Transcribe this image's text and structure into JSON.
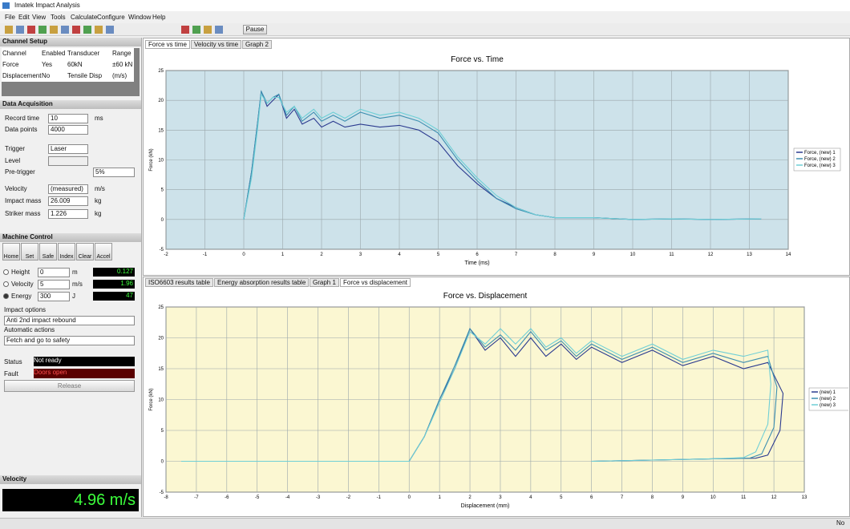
{
  "window": {
    "title": "Imatek Impact Analysis",
    "menu": [
      "File",
      "Edit",
      "View",
      "Tools",
      "Calculate",
      "Configure",
      "Window",
      "Help"
    ],
    "pause": "Pause",
    "status": "No"
  },
  "channel_setup": {
    "title": "Channel Setup",
    "header": [
      "Channel",
      "Enabled",
      "Transducer",
      "Range"
    ],
    "rows": [
      [
        "Force",
        "Yes",
        "60kN",
        "±60 kN"
      ],
      [
        "Displacement",
        "No",
        "Tensile Disp",
        "(m/s)"
      ]
    ]
  },
  "data_acquisition": {
    "title": "Data Acquisition",
    "record_time": {
      "label": "Record time",
      "value": "10",
      "unit": "ms"
    },
    "data_points": {
      "label": "Data points",
      "value": "4000"
    },
    "trigger": {
      "label": "Trigger",
      "value": "Laser"
    },
    "level": {
      "label": "Level"
    },
    "pre_trigger": {
      "label": "Pre-trigger",
      "value": "5%"
    },
    "velocity": {
      "label": "Velocity",
      "value": "(measured)",
      "unit": "m/s"
    },
    "impact_mass": {
      "label": "Impact mass",
      "value": "26.009",
      "unit": "kg"
    },
    "striker_mass": {
      "label": "Striker mass",
      "value": "1.226",
      "unit": "kg"
    }
  },
  "machine_control": {
    "title": "Machine Control",
    "buttons": [
      "Home",
      "Set",
      "Safe",
      "Index",
      "Clear",
      "Accel"
    ],
    "rows": [
      {
        "label": "Height",
        "value": "0",
        "unit": "m",
        "reading": "0.127"
      },
      {
        "label": "Velocity",
        "value": "5",
        "unit": "m/s",
        "reading": "1.96"
      },
      {
        "label": "Energy",
        "value": "300",
        "unit": "J",
        "reading": "47"
      }
    ],
    "impact_options": {
      "label": "Impact options",
      "value": "Anti 2nd impact rebound"
    },
    "automatic_actions": {
      "label": "Automatic actions",
      "value": "Fetch and go to safety"
    },
    "status": {
      "label": "Status",
      "value": "Not ready"
    },
    "fault": {
      "label": "Fault",
      "value": "Doors open"
    },
    "release": "Release"
  },
  "velocity_panel": {
    "title": "Velocity",
    "reading": "4.96 m/s"
  },
  "tabs_top": [
    "Force vs time",
    "Velocity vs time",
    "Graph 2"
  ],
  "tabs_bottom": [
    "ISO6603 results table",
    "Energy absorption results table",
    "Graph 1",
    "Force vs displacement"
  ],
  "chart_data": [
    {
      "type": "line",
      "title": "Force vs. Time",
      "x_label": "Time (ms)",
      "y_label": "Force (kN)",
      "xlim": [
        -2,
        14
      ],
      "xticks": [
        -2,
        -1,
        0,
        1,
        2,
        3,
        4,
        5,
        6,
        7,
        8,
        9,
        10,
        11,
        12,
        13,
        14
      ],
      "ylim": [
        -5,
        25
      ],
      "yticks": [
        -5,
        0,
        5,
        10,
        15,
        20,
        25
      ],
      "grid": true,
      "background": "#cde2ea",
      "series": [
        {
          "name": "Force, (new) 1",
          "color": "#2b3a8f",
          "x": [
            0,
            0.2,
            0.35,
            0.45,
            0.6,
            0.75,
            0.9,
            1.1,
            1.3,
            1.5,
            1.8,
            2,
            2.3,
            2.6,
            3,
            3.5,
            4,
            4.5,
            5,
            5.5,
            6,
            6.5,
            7,
            7.5,
            8,
            9,
            10,
            11,
            12,
            13.3
          ],
          "values": [
            0,
            8,
            16,
            21.5,
            19,
            20,
            21,
            17,
            18.5,
            16,
            17,
            15.5,
            16.5,
            15.5,
            16,
            15.5,
            15.8,
            15,
            13,
            9,
            6,
            3.5,
            2,
            0.8,
            0.3,
            0.3,
            0,
            0.1,
            0,
            0.1
          ]
        },
        {
          "name": "Force, (new) 2",
          "color": "#3d8fb0",
          "x": [
            0,
            0.2,
            0.35,
            0.45,
            0.6,
            0.75,
            0.9,
            1.1,
            1.3,
            1.5,
            1.8,
            2,
            2.3,
            2.6,
            3,
            3.5,
            4,
            4.5,
            5,
            5.5,
            6,
            6.5,
            7,
            7.5,
            8,
            9,
            10,
            11,
            12,
            13.3
          ],
          "values": [
            0,
            8,
            16,
            21.5,
            19.5,
            20.5,
            21,
            17.5,
            19,
            16.5,
            18,
            16.5,
            17.5,
            16.5,
            18,
            17,
            17.5,
            16.5,
            14.5,
            10,
            6.5,
            3.5,
            1.8,
            0.8,
            0.3,
            0.3,
            0,
            0.1,
            0,
            0.1
          ]
        },
        {
          "name": "Force, (new) 3",
          "color": "#6fcfd6",
          "x": [
            0,
            0.2,
            0.35,
            0.45,
            0.6,
            0.75,
            0.9,
            1.1,
            1.3,
            1.5,
            1.8,
            2,
            2.3,
            2.6,
            3,
            3.5,
            4,
            4.5,
            5,
            5.5,
            6,
            6.5,
            7,
            7.5,
            8,
            9,
            10,
            11,
            12,
            13.3
          ],
          "values": [
            0,
            7,
            15,
            21,
            19.5,
            20.5,
            20.5,
            18,
            19,
            17,
            18.5,
            17,
            18,
            17,
            18.5,
            17.5,
            18,
            17,
            15,
            10.5,
            7,
            4,
            2,
            0.8,
            0.3,
            0.3,
            0,
            0.1,
            0,
            0.1
          ]
        }
      ]
    },
    {
      "type": "line",
      "title": "Force vs. Displacement",
      "x_label": "Displacement (mm)",
      "y_label": "Force (kN)",
      "xlim": [
        -8,
        13
      ],
      "xticks": [
        -8,
        -7,
        -6,
        -5,
        -4,
        -3,
        -2,
        -1,
        0,
        1,
        2,
        3,
        4,
        5,
        6,
        7,
        8,
        9,
        10,
        11,
        12,
        13
      ],
      "ylim": [
        -5,
        25
      ],
      "yticks": [
        -5,
        0,
        5,
        10,
        15,
        20,
        25
      ],
      "grid": true,
      "background": "#fbf7d2",
      "series": [
        {
          "name": "(new) 1",
          "color": "#2b3a8f",
          "x": [
            -7.5,
            -4,
            -1,
            0,
            0.5,
            1,
            1.5,
            2,
            2.5,
            3,
            3.5,
            4,
            4.5,
            5,
            5.5,
            6,
            7,
            8,
            9,
            10,
            11,
            11.8,
            12.3,
            12.2,
            11.8,
            11.4,
            10,
            8,
            6
          ],
          "values": [
            0,
            0,
            0,
            0,
            4,
            10,
            15,
            21.5,
            18,
            20,
            17,
            20,
            17,
            19,
            16.5,
            18.5,
            16,
            18,
            15.5,
            17,
            15,
            16,
            11,
            5,
            1,
            0.5,
            0.4,
            0.2,
            0
          ]
        },
        {
          "name": "(new) 2",
          "color": "#3d8fb0",
          "x": [
            -7.5,
            -4,
            -1,
            0,
            0.5,
            1,
            1.5,
            2,
            2.5,
            3,
            3.5,
            4,
            4.5,
            5,
            5.5,
            6,
            7,
            8,
            9,
            10,
            11,
            11.8,
            12.1,
            12,
            11.6,
            11.2,
            10,
            8,
            6
          ],
          "values": [
            0,
            0,
            0,
            0,
            4,
            10,
            15.5,
            21.5,
            18.5,
            20.5,
            18,
            21,
            18,
            19.5,
            17,
            19,
            16.5,
            18.5,
            16,
            17.5,
            16,
            17,
            12,
            5.5,
            1.2,
            0.5,
            0.4,
            0.2,
            0
          ]
        },
        {
          "name": "(new) 3",
          "color": "#6fcfd6",
          "x": [
            -7.5,
            -4,
            -1,
            0,
            0.5,
            1,
            1.5,
            2,
            2.5,
            3,
            3.5,
            4,
            4.5,
            5,
            5.5,
            6,
            7,
            8,
            9,
            10,
            11,
            11.8,
            11.9,
            11.8,
            11.4,
            11,
            10,
            8,
            6
          ],
          "values": [
            0,
            0,
            0,
            0,
            4,
            9.5,
            15,
            21,
            19,
            21.5,
            19,
            21.5,
            18.5,
            20,
            17.5,
            19.5,
            17,
            19,
            16.5,
            18,
            17,
            18,
            12.5,
            6,
            1.5,
            0.6,
            0.4,
            0.2,
            0
          ]
        }
      ]
    }
  ]
}
